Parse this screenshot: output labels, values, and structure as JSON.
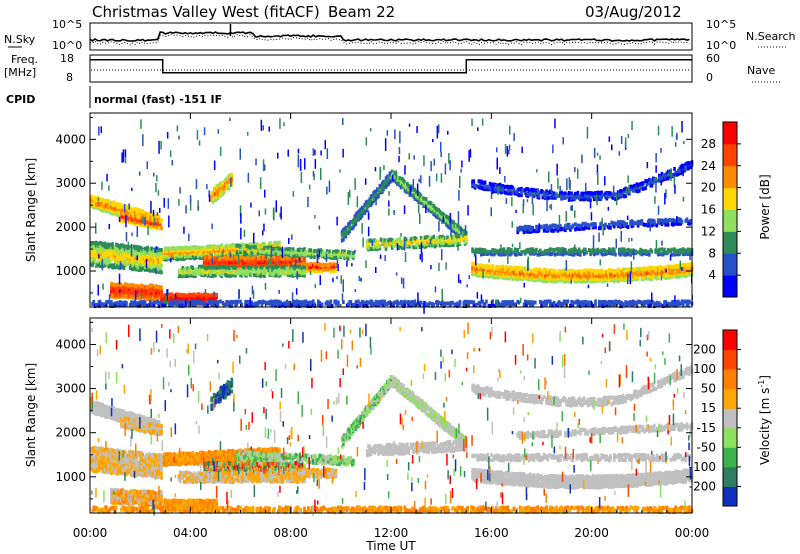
{
  "header": {
    "title": "Christmas Valley West (fitACF)",
    "beam": "Beam 22",
    "date": "03/Aug/2012"
  },
  "noise_panel": {
    "left_label": "N.Sky",
    "right_label": "N.Search",
    "left_ticks": [
      "10^5",
      "10^0"
    ],
    "right_ticks": [
      "10^5",
      "10^0"
    ]
  },
  "freq_panel": {
    "left_label_1": "Freq.",
    "left_label_2": "[MHz]",
    "right_label": "Nave",
    "left_ticks": [
      "18",
      "8"
    ],
    "right_ticks": [
      "60",
      "0"
    ],
    "freq_mhz": [
      {
        "t_start": 0,
        "t_end": 2.9,
        "value": 16.3
      },
      {
        "t_start": 2.9,
        "t_end": 15.0,
        "value": 10.3
      },
      {
        "t_start": 15.0,
        "t_end": 24,
        "value": 16.3
      }
    ]
  },
  "cpid_panel": {
    "label": "CPID",
    "text": "normal (fast) -151 IF"
  },
  "chart_data": [
    {
      "type": "heatmap",
      "name": "power",
      "xlabel": "Time UT",
      "ylabel": "Slant Range [km]",
      "x_range_hours": [
        0,
        24
      ],
      "ylim": [
        180,
        4600
      ],
      "y_ticks": [
        1000,
        2000,
        3000,
        4000
      ],
      "y_tick_labels": [
        "1000",
        "2000",
        "3000",
        "4000"
      ],
      "colorbar_label": "Power [dB]",
      "colorbar_ticks": [
        "28",
        "24",
        "20",
        "16",
        "12",
        "8",
        "4"
      ],
      "colorbar_colors": [
        "#0000ff",
        "#2850c8",
        "#2e8b57",
        "#90e060",
        "#ffd700",
        "#ff8c00",
        "#ff4500",
        "#ff0000"
      ]
    },
    {
      "type": "heatmap",
      "name": "velocity",
      "xlabel": "Time UT",
      "ylabel": "Slant Range [km]",
      "x_range_hours": [
        0,
        24
      ],
      "ylim": [
        180,
        4600
      ],
      "y_ticks": [
        1000,
        2000,
        3000,
        4000
      ],
      "y_tick_labels": [
        "1000",
        "2000",
        "3000",
        "4000"
      ],
      "colorbar_label": "Velocity [m s",
      "colorbar_sup": "-1",
      "colorbar_label_end": "]",
      "colorbar_ticks": [
        "200",
        "100",
        "50",
        "15",
        "-15",
        "-50",
        "-100",
        "-200"
      ],
      "colorbar_colors": [
        "#1030c0",
        "#2e7d60",
        "#3cb44b",
        "#90e060",
        "#c0c0c0",
        "#ffa500",
        "#ff7f00",
        "#ff4500",
        "#ff0000"
      ]
    }
  ],
  "x_axis": {
    "label": "Time UT",
    "ticks": [
      "00:00",
      "04:00",
      "08:00",
      "12:00",
      "16:00",
      "20:00",
      "00:00"
    ],
    "tick_hours": [
      0,
      4,
      8,
      12,
      16,
      20,
      24
    ]
  }
}
